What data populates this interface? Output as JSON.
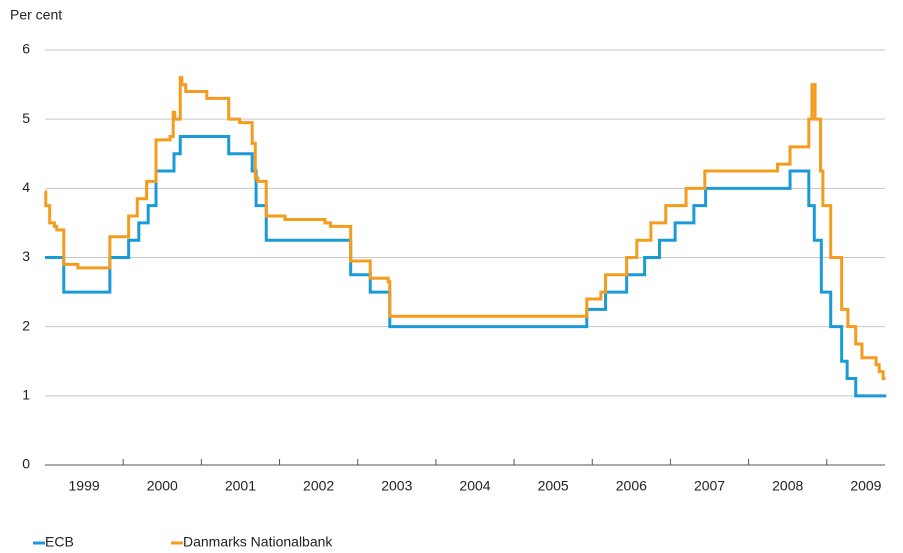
{
  "chart_data": {
    "type": "line",
    "step": "post",
    "ylabel": "Per cent",
    "xlim": [
      1999,
      2009.77
    ],
    "ylim": [
      0,
      6
    ],
    "yticks": [
      0,
      1,
      2,
      3,
      4,
      5,
      6
    ],
    "xticks": [
      {
        "value": 1999.5,
        "label": "1999"
      },
      {
        "value": 2000.5,
        "label": "2000"
      },
      {
        "value": 2001.5,
        "label": "2001"
      },
      {
        "value": 2002.5,
        "label": "2002"
      },
      {
        "value": 2003.5,
        "label": "2003"
      },
      {
        "value": 2004.5,
        "label": "2004"
      },
      {
        "value": 2005.5,
        "label": "2005"
      },
      {
        "value": 2006.5,
        "label": "2006"
      },
      {
        "value": 2007.5,
        "label": "2007"
      },
      {
        "value": 2008.5,
        "label": "2008"
      },
      {
        "value": 2009.5,
        "label": "2009"
      }
    ],
    "grid": true,
    "legend": "bottom",
    "series": [
      {
        "name": "ECB",
        "color": "#1a9bd7",
        "x": [
          1999,
          1999.24,
          1999.83,
          2000.07,
          2000.2,
          2000.32,
          2000.42,
          2000.65,
          2000.73,
          2001.35,
          2001.65,
          2001.7,
          2001.83,
          2002.91,
          2003.16,
          2003.41,
          2005.93,
          2006.17,
          2006.44,
          2006.67,
          2006.86,
          2007.06,
          2007.3,
          2007.45,
          2008.53,
          2008.77,
          2008.84,
          2008.93,
          2009.05,
          2009.19,
          2009.26,
          2009.37,
          2009.76
        ],
        "values": [
          3.0,
          2.5,
          3.0,
          3.25,
          3.5,
          3.75,
          4.25,
          4.5,
          4.75,
          4.5,
          4.25,
          3.75,
          3.25,
          2.75,
          2.5,
          2.0,
          2.25,
          2.5,
          2.75,
          3.0,
          3.25,
          3.5,
          3.75,
          4.0,
          4.25,
          3.75,
          3.25,
          2.5,
          2.0,
          1.5,
          1.25,
          1.0,
          1.0
        ]
      },
      {
        "name": "Danmarks Nationalbank",
        "color": "#f39c1e",
        "x": [
          1999,
          1999.01,
          1999.06,
          1999.12,
          1999.15,
          1999.24,
          1999.42,
          1999.83,
          2000.07,
          2000.18,
          2000.3,
          2000.42,
          2000.6,
          2000.64,
          2000.66,
          2000.73,
          2000.75,
          2000.8,
          2001.07,
          2001.35,
          2001.49,
          2001.65,
          2001.69,
          2001.72,
          2001.83,
          2002.07,
          2002.58,
          2002.65,
          2002.91,
          2003.16,
          2003.39,
          2003.41,
          2005.93,
          2006.11,
          2006.17,
          2006.44,
          2006.57,
          2006.75,
          2006.94,
          2007.2,
          2007.44,
          2008.37,
          2008.53,
          2008.77,
          2008.81,
          2008.85,
          2008.92,
          2008.95,
          2009.05,
          2009.19,
          2009.27,
          2009.37,
          2009.45,
          2009.63,
          2009.67,
          2009.72,
          2009.75
        ],
        "values": [
          3.95,
          3.75,
          3.5,
          3.45,
          3.4,
          2.9,
          2.85,
          3.3,
          3.6,
          3.85,
          4.1,
          4.7,
          4.75,
          5.1,
          5.0,
          5.6,
          5.5,
          5.4,
          5.3,
          5.0,
          4.95,
          4.65,
          4.15,
          4.1,
          3.6,
          3.55,
          3.5,
          3.45,
          2.95,
          2.7,
          2.65,
          2.15,
          2.4,
          2.5,
          2.75,
          3.0,
          3.25,
          3.5,
          3.75,
          4.0,
          4.25,
          4.35,
          4.6,
          5.0,
          5.5,
          5.0,
          4.25,
          3.75,
          3.0,
          2.25,
          2.0,
          1.75,
          1.55,
          1.45,
          1.35,
          1.25,
          1.25
        ]
      }
    ]
  }
}
